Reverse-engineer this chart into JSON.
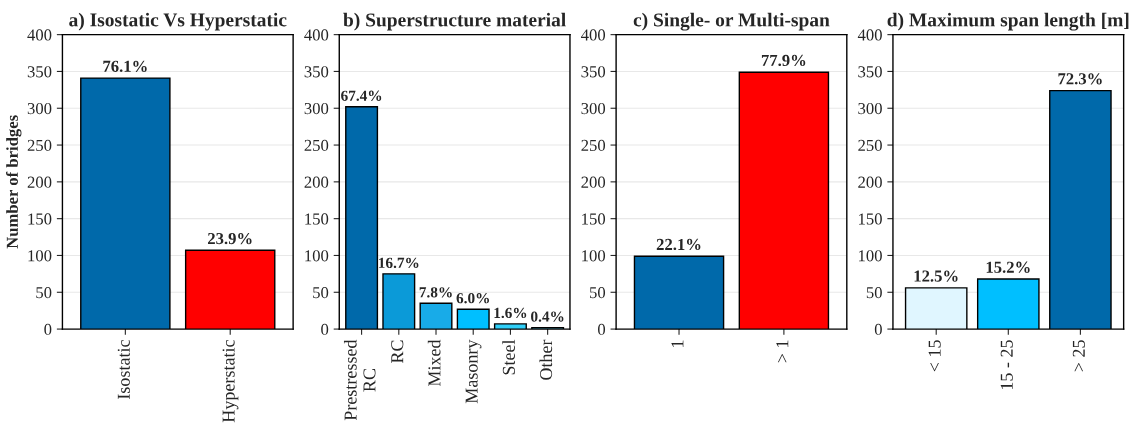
{
  "chart_data": [
    {
      "type": "bar",
      "title": "a) Isostatic Vs Hyperstatic",
      "ylabel": "Number of bridges",
      "categories": [
        "Isostatic",
        "Hyperstatic"
      ],
      "values": [
        341,
        107
      ],
      "colors": [
        "#0069aa",
        "#ff0000"
      ],
      "ylim": [
        0,
        400
      ],
      "yticks": [
        0,
        50,
        100,
        150,
        200,
        250,
        300,
        350,
        400
      ],
      "grid": "y",
      "annotations": [
        {
          "text": "76.1%",
          "x": "Isostatic",
          "y": 341
        },
        {
          "text": "23.9%",
          "x": "Hyperstatic",
          "y": 107
        }
      ]
    },
    {
      "type": "bar",
      "title": "b) Superstructure material",
      "categories": [
        "Prestressed\nRC",
        "RC",
        "Mixed",
        "Masonry",
        "Steel",
        "Other"
      ],
      "values": [
        302,
        75,
        35,
        27,
        7,
        2
      ],
      "colors": [
        "#0069aa",
        "#0b9ad8",
        "#18abe8",
        "#00bfff",
        "#30cff8",
        "#60dfff"
      ],
      "ylim": [
        0,
        400
      ],
      "yticks": [
        0,
        50,
        100,
        150,
        200,
        250,
        300,
        350,
        400
      ],
      "grid": "y",
      "annotations": [
        {
          "text": "67.4%",
          "x": "Prestressed\nRC",
          "y": 302
        },
        {
          "text": "16.7%",
          "x": "RC",
          "y": 75
        },
        {
          "text": "7.8%",
          "x": "Mixed",
          "y": 35
        },
        {
          "text": "6.0%",
          "x": "Masonry",
          "y": 27
        },
        {
          "text": "1.6%",
          "x": "Steel",
          "y": 7
        },
        {
          "text": "0.4%",
          "x": "Other",
          "y": 2
        }
      ]
    },
    {
      "type": "bar",
      "title": "c) Single- or Multi-span",
      "categories": [
        "1",
        "> 1"
      ],
      "values": [
        99,
        349
      ],
      "colors": [
        "#0069aa",
        "#ff0000"
      ],
      "ylim": [
        0,
        400
      ],
      "yticks": [
        0,
        50,
        100,
        150,
        200,
        250,
        300,
        350,
        400
      ],
      "grid": "y",
      "annotations": [
        {
          "text": "22.1%",
          "x": "1",
          "y": 99
        },
        {
          "text": "77.9%",
          "x": "> 1",
          "y": 349
        }
      ]
    },
    {
      "type": "bar",
      "title": "d) Maximum span length [m]",
      "categories": [
        "< 15",
        "15 - 25",
        "> 25"
      ],
      "values": [
        56,
        68,
        324
      ],
      "colors": [
        "#e0f6ff",
        "#00bfff",
        "#0069aa"
      ],
      "ylim": [
        0,
        400
      ],
      "yticks": [
        0,
        50,
        100,
        150,
        200,
        250,
        300,
        350,
        400
      ],
      "grid": "y",
      "annotations": [
        {
          "text": "12.5%",
          "x": "< 15",
          "y": 56
        },
        {
          "text": "15.2%",
          "x": "15 - 25",
          "y": 68
        },
        {
          "text": "72.3%",
          "x": "> 25",
          "y": 324
        }
      ]
    }
  ]
}
